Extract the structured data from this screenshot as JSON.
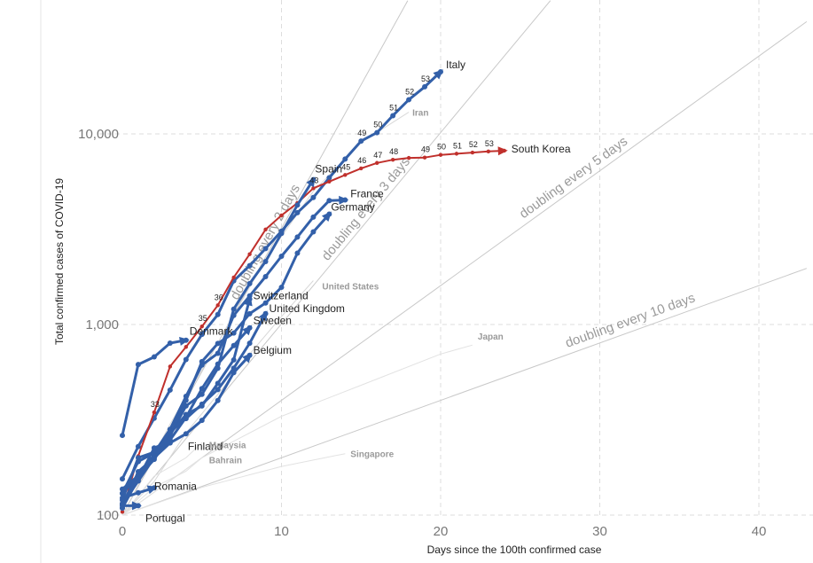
{
  "chart_data": {
    "type": "line",
    "xlabel": "Days since the 100th confirmed case",
    "ylabel": "Total confirmed cases of COVID-19",
    "xlim": [
      0,
      43
    ],
    "ylim": [
      100,
      50000
    ],
    "yscale": "log",
    "x_ticks": [
      0,
      10,
      20,
      30,
      40
    ],
    "x_tick_labels": [
      "0",
      "10",
      "20",
      "30",
      "40"
    ],
    "y_ticks": [
      100,
      1000,
      10000
    ],
    "y_tick_labels": [
      "100",
      "1,000",
      "10,000"
    ],
    "grid": true,
    "doubling_lines": [
      {
        "label": "doubling every 2 days",
        "days": 2
      },
      {
        "label": "doubling every 3 days",
        "days": 3
      },
      {
        "label": "doubling every 5 days",
        "days": 5
      },
      {
        "label": "doubling every 10 days",
        "days": 10
      }
    ],
    "series": [
      {
        "name": "Italy",
        "color": "#3360a9",
        "emphasis": "highlight",
        "x": [
          0,
          1,
          2,
          3,
          4,
          5,
          6,
          7,
          8,
          9,
          10,
          11,
          12,
          13,
          14,
          15,
          16,
          17,
          18,
          19,
          20
        ],
        "y": [
          155,
          229,
          322,
          453,
          655,
          888,
          1128,
          1694,
          2036,
          2502,
          3089,
          3858,
          4636,
          5883,
          7375,
          9172,
          10149,
          12462,
          15113,
          17660,
          21157
        ],
        "point_labels": [
          {
            "x": 15,
            "text": "49"
          },
          {
            "x": 16,
            "text": "50"
          },
          {
            "x": 17,
            "text": "51"
          },
          {
            "x": 18,
            "text": "52"
          },
          {
            "x": 19,
            "text": "53"
          }
        ]
      },
      {
        "name": "South Korea",
        "color": "#c0302c",
        "emphasis": "highlight",
        "x": [
          0,
          1,
          2,
          3,
          4,
          5,
          6,
          7,
          8,
          9,
          10,
          11,
          12,
          13,
          14,
          15,
          16,
          17,
          18,
          19,
          20,
          21,
          22,
          23,
          24
        ],
        "y": [
          104,
          204,
          346,
          602,
          763,
          977,
          1261,
          1766,
          2337,
          3150,
          3736,
          4335,
          5186,
          5621,
          6088,
          6593,
          7041,
          7313,
          7478,
          7513,
          7755,
          7869,
          7979,
          8086,
          8162
        ],
        "point_labels": [
          {
            "x": 2,
            "text": "33"
          },
          {
            "x": 5,
            "text": "35"
          },
          {
            "x": 6,
            "text": "36"
          },
          {
            "x": 12,
            "text": "43"
          },
          {
            "x": 14,
            "text": "45"
          },
          {
            "x": 15,
            "text": "46"
          },
          {
            "x": 16,
            "text": "47"
          },
          {
            "x": 17,
            "text": "48"
          },
          {
            "x": 19,
            "text": "49"
          },
          {
            "x": 20,
            "text": "50"
          },
          {
            "x": 21,
            "text": "51"
          },
          {
            "x": 22,
            "text": "52"
          },
          {
            "x": 23,
            "text": "53"
          }
        ]
      },
      {
        "name": "Spain",
        "color": "#3360a9",
        "emphasis": "normal",
        "x": [
          0,
          1,
          2,
          3,
          4,
          5,
          6,
          7,
          8,
          9,
          10,
          11,
          12
        ],
        "y": [
          114,
          151,
          200,
          261,
          374,
          430,
          589,
          1204,
          1639,
          2140,
          3004,
          4231,
          5753
        ]
      },
      {
        "name": "France",
        "color": "#3360a9",
        "emphasis": "normal",
        "x": [
          0,
          1,
          2,
          3,
          4,
          5,
          6,
          7,
          8,
          9,
          10,
          11,
          12,
          13,
          14
        ],
        "y": [
          130,
          191,
          212,
          282,
          420,
          613,
          706,
          1116,
          1412,
          1784,
          2281,
          2876,
          3661,
          4469,
          4500
        ]
      },
      {
        "name": "Germany",
        "color": "#3360a9",
        "emphasis": "normal",
        "x": [
          0,
          1,
          2,
          3,
          4,
          5,
          6,
          7,
          8,
          9,
          10,
          11,
          12,
          13
        ],
        "y": [
          130,
          159,
          196,
          262,
          400,
          639,
          795,
          902,
          1139,
          1296,
          1567,
          2369,
          3062,
          3795
        ]
      },
      {
        "name": "Switzerland",
        "color": "#3360a9",
        "emphasis": "normal",
        "x": [
          0,
          1,
          2,
          3,
          4,
          5,
          6,
          7,
          8
        ],
        "y": [
          120,
          200,
          214,
          268,
          337,
          374,
          491,
          652,
          1359
        ]
      },
      {
        "name": "United Kingdom",
        "color": "#3360a9",
        "emphasis": "normal",
        "x": [
          0,
          1,
          2,
          3,
          4,
          5,
          6,
          7,
          8,
          9
        ],
        "y": [
          115,
          163,
          206,
          273,
          321,
          382,
          456,
          590,
          798,
          1140
        ]
      },
      {
        "name": "Denmark",
        "color": "#3360a9",
        "emphasis": "normal",
        "x": [
          0,
          1,
          2,
          3,
          4
        ],
        "y": [
          262,
          617,
          676,
          799,
          827
        ]
      },
      {
        "name": "Sweden",
        "color": "#3360a9",
        "emphasis": "normal",
        "x": [
          0,
          1,
          2,
          3,
          4,
          5,
          6,
          7,
          8
        ],
        "y": [
          137,
          161,
          203,
          248,
          326,
          461,
          620,
          775,
          961
        ]
      },
      {
        "name": "Belgium",
        "color": "#3360a9",
        "emphasis": "normal",
        "x": [
          0,
          1,
          2,
          3,
          4,
          5,
          6,
          7,
          8
        ],
        "y": [
          109,
          169,
          200,
          239,
          267,
          314,
          399,
          559,
          689
        ]
      },
      {
        "name": "Finland",
        "color": "#3360a9",
        "emphasis": "normal",
        "x": [
          0,
          1,
          2,
          3
        ],
        "y": [
          109,
          155,
          225,
          244
        ]
      },
      {
        "name": "Romania",
        "color": "#3360a9",
        "emphasis": "normal",
        "x": [
          0,
          1,
          2
        ],
        "y": [
          123,
          131,
          139
        ]
      },
      {
        "name": "Portugal",
        "color": "#3360a9",
        "emphasis": "normal",
        "x": [
          0,
          1
        ],
        "y": [
          112,
          112
        ]
      },
      {
        "name": "United States",
        "color": "#d8d8d8",
        "emphasis": "faint",
        "x": [
          0,
          2,
          4,
          6,
          8,
          10,
          12
        ],
        "y": [
          100,
          150,
          270,
          430,
          700,
          1100,
          1700
        ]
      },
      {
        "name": "Iran",
        "color": "#d8d8d8",
        "emphasis": "faint",
        "x": [
          0,
          3,
          6,
          9,
          12,
          15,
          18
        ],
        "y": [
          100,
          300,
          800,
          2200,
          5000,
          9000,
          13000
        ]
      },
      {
        "name": "Japan",
        "color": "#e2e2e2",
        "emphasis": "faint",
        "x": [
          0,
          5,
          10,
          15,
          20,
          22
        ],
        "y": [
          100,
          200,
          330,
          480,
          700,
          780
        ]
      },
      {
        "name": "Malaysia",
        "color": "#e2e2e2",
        "emphasis": "faint",
        "x": [
          0,
          2,
          4,
          5
        ],
        "y": [
          100,
          160,
          200,
          240
        ]
      },
      {
        "name": "Bahrain",
        "color": "#e2e2e2",
        "emphasis": "faint",
        "x": [
          0,
          2,
          4,
          5
        ],
        "y": [
          100,
          140,
          170,
          200
        ]
      },
      {
        "name": "Singapore",
        "color": "#e2e2e2",
        "emphasis": "faint",
        "x": [
          0,
          5,
          10,
          14
        ],
        "y": [
          100,
          140,
          180,
          210
        ]
      }
    ]
  }
}
